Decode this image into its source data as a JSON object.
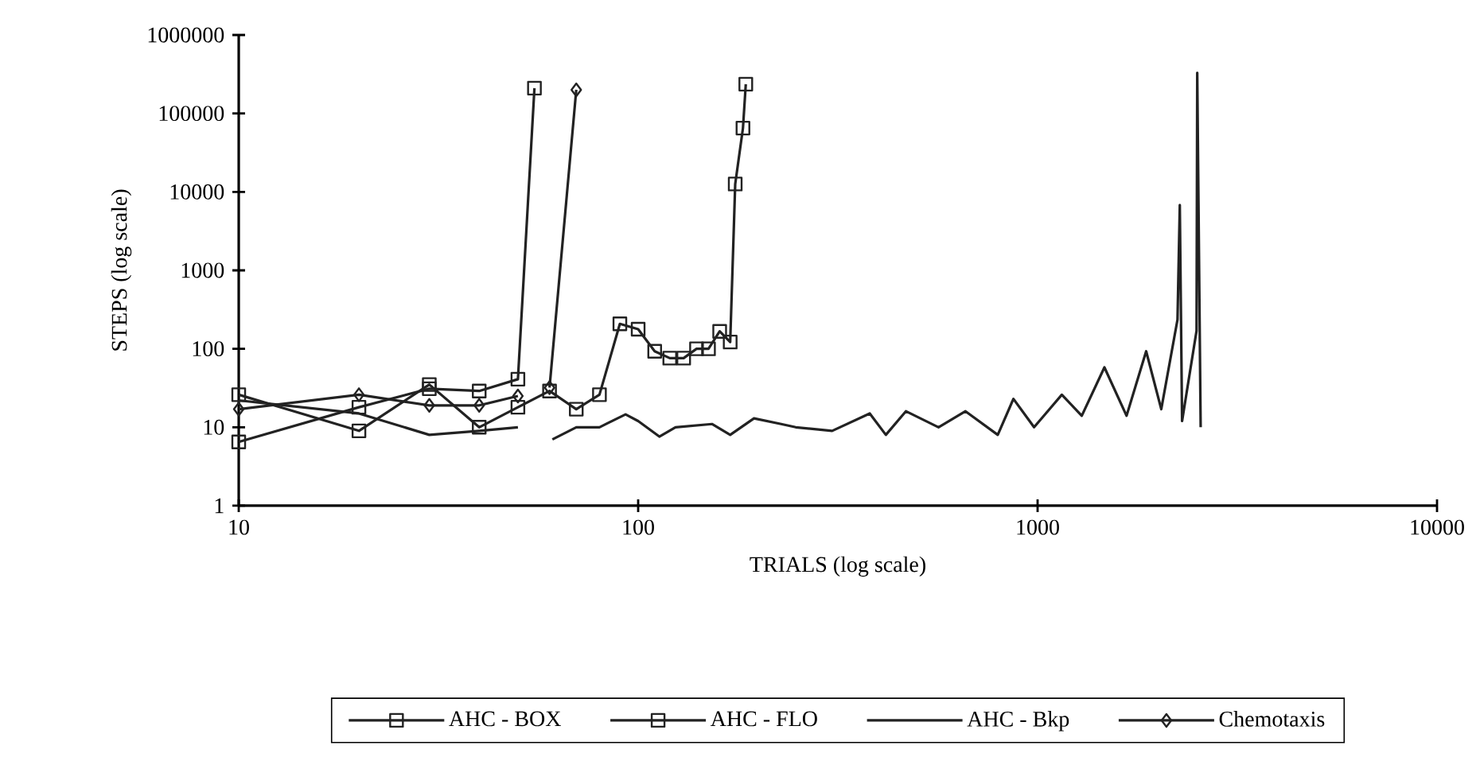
{
  "chart_data": {
    "type": "line",
    "xlabel": "TRIALS (log scale)",
    "ylabel": "STEPS (log scale)",
    "log": "xy",
    "xlim": [
      10,
      10000
    ],
    "ylim": [
      1,
      1000000
    ],
    "xticks": [
      10,
      100,
      1000,
      10000
    ],
    "yticks": [
      1,
      10,
      100,
      1000,
      10000,
      100000,
      1000000
    ],
    "legend": "bottom",
    "grid": false,
    "line_style": "solid",
    "series": [
      {
        "name": "AHC - BOX",
        "color": "#222222",
        "marker": "square",
        "x": [
          10,
          20,
          30,
          40,
          50,
          55
        ],
        "values": [
          6.5,
          18,
          31,
          29,
          41,
          210000
        ]
      },
      {
        "name": "AHC - FLO",
        "color": "#222222",
        "marker": "square",
        "x": [
          10,
          20,
          30,
          40,
          50,
          60,
          70,
          80,
          90,
          100,
          110,
          120,
          130,
          140,
          150,
          160,
          170,
          175,
          183,
          186
        ],
        "values": [
          26,
          9,
          35,
          10,
          18,
          29,
          17,
          26,
          208,
          178,
          93,
          76,
          76,
          100,
          100,
          167,
          122,
          12600,
          65000,
          236000
        ]
      },
      {
        "name": "AHC - Bkp",
        "color": "#222222",
        "marker": "none",
        "x": [
          10,
          20,
          30,
          40,
          50,
          55,
          61,
          70,
          80,
          93,
          100,
          113,
          124,
          153,
          170,
          195,
          228,
          248,
          306,
          380,
          417,
          468,
          565,
          660,
          795,
          870,
          980,
          1150,
          1290,
          1470,
          1670,
          1870,
          2040,
          2240,
          2270,
          2300,
          2500,
          2510,
          2560
        ],
        "values": [
          22,
          15,
          8,
          9,
          10,
          null,
          7,
          10,
          10,
          14.6,
          12,
          7.6,
          10,
          11,
          8,
          13,
          11,
          10,
          9,
          15,
          8,
          16,
          10,
          16,
          8,
          23,
          10,
          26,
          14,
          58,
          14,
          93,
          17,
          235,
          6800,
          12,
          170,
          330000,
          10
        ]
      },
      {
        "name": "Chemotaxis",
        "color": "#222222",
        "marker": "diamond",
        "x": [
          10,
          20,
          30,
          40,
          50,
          55,
          60,
          70
        ],
        "values": [
          17,
          26,
          19,
          19,
          25,
          null,
          32,
          200000
        ]
      }
    ]
  }
}
